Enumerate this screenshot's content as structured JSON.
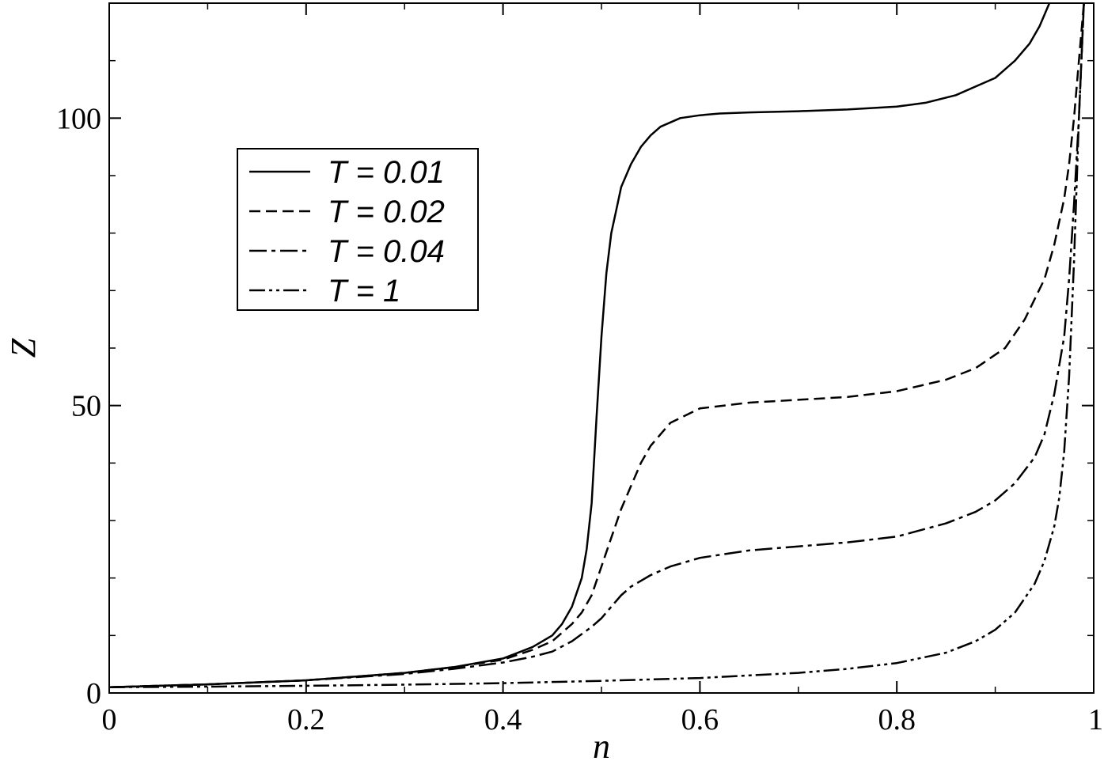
{
  "chart_data": {
    "type": "line",
    "title": "",
    "xlabel": "n",
    "ylabel": "Z",
    "xlim": [
      0,
      1
    ],
    "ylim": [
      0,
      120
    ],
    "x_ticks": [
      {
        "value": 0,
        "label": "0"
      },
      {
        "value": 0.2,
        "label": "0.2"
      },
      {
        "value": 0.4,
        "label": "0.4"
      },
      {
        "value": 0.6,
        "label": "0.6"
      },
      {
        "value": 0.8,
        "label": "0.8"
      },
      {
        "value": 1,
        "label": "1"
      }
    ],
    "y_ticks": [
      {
        "value": 0,
        "label": "0"
      },
      {
        "value": 50,
        "label": "50"
      },
      {
        "value": 100,
        "label": "100"
      }
    ],
    "x_minor_step": 0.1,
    "y_minor_step": 10,
    "grid": false,
    "legend_position": "upper-left",
    "series": [
      {
        "name": "T = 0.01",
        "dash": "solid",
        "color": "#000000",
        "x": [
          0,
          0.1,
          0.2,
          0.3,
          0.35,
          0.4,
          0.43,
          0.45,
          0.46,
          0.47,
          0.48,
          0.485,
          0.49,
          0.495,
          0.5,
          0.505,
          0.51,
          0.515,
          0.52,
          0.53,
          0.54,
          0.55,
          0.56,
          0.58,
          0.6,
          0.62,
          0.65,
          0.7,
          0.75,
          0.8,
          0.83,
          0.86,
          0.88,
          0.9,
          0.92,
          0.935,
          0.945,
          0.955
        ],
        "y": [
          1,
          1.5,
          2.2,
          3.5,
          4.5,
          6,
          8,
          10,
          12,
          15,
          20,
          25,
          33,
          48,
          62,
          73,
          80,
          84,
          88,
          92,
          95,
          97,
          98.5,
          100,
          100.5,
          100.8,
          101,
          101.2,
          101.5,
          102,
          102.7,
          104,
          105.5,
          107,
          110,
          113,
          116,
          120
        ]
      },
      {
        "name": "T = 0.02",
        "dash": "dashed",
        "color": "#000000",
        "x": [
          0,
          0.1,
          0.2,
          0.3,
          0.35,
          0.4,
          0.43,
          0.45,
          0.47,
          0.48,
          0.49,
          0.5,
          0.51,
          0.52,
          0.53,
          0.54,
          0.55,
          0.57,
          0.6,
          0.65,
          0.7,
          0.75,
          0.8,
          0.85,
          0.88,
          0.91,
          0.93,
          0.95,
          0.96,
          0.97,
          0.975,
          0.98,
          0.985,
          0.99
        ],
        "y": [
          1,
          1.5,
          2.2,
          3.5,
          4.5,
          5.8,
          7.5,
          9,
          12,
          14,
          17,
          22,
          27,
          32,
          36,
          40,
          43,
          47,
          49.5,
          50.5,
          51,
          51.5,
          52.5,
          54.5,
          56.5,
          60,
          65,
          72,
          78,
          86,
          92,
          100,
          110,
          120
        ]
      },
      {
        "name": "T = 0.04",
        "dash": "dashdot",
        "color": "#000000",
        "x": [
          0,
          0.1,
          0.2,
          0.3,
          0.35,
          0.4,
          0.43,
          0.45,
          0.47,
          0.49,
          0.5,
          0.51,
          0.52,
          0.53,
          0.55,
          0.57,
          0.6,
          0.65,
          0.7,
          0.75,
          0.8,
          0.85,
          0.88,
          0.9,
          0.92,
          0.94,
          0.95,
          0.96,
          0.97,
          0.975,
          0.98,
          0.985,
          0.99
        ],
        "y": [
          1,
          1.5,
          2.2,
          3.3,
          4.2,
          5.3,
          6.3,
          7.2,
          9,
          11.5,
          13,
          15,
          17,
          18.5,
          20.5,
          22,
          23.5,
          24.8,
          25.5,
          26.2,
          27.2,
          29.5,
          31.5,
          33.5,
          36.5,
          41,
          45,
          52,
          62,
          72,
          85,
          100,
          120
        ]
      },
      {
        "name": "T = 1",
        "dash": "dashdotdot",
        "color": "#000000",
        "x": [
          0,
          0.1,
          0.2,
          0.3,
          0.4,
          0.5,
          0.6,
          0.7,
          0.75,
          0.8,
          0.85,
          0.88,
          0.9,
          0.92,
          0.94,
          0.95,
          0.96,
          0.965,
          0.97,
          0.975,
          0.98,
          0.985,
          0.99
        ],
        "y": [
          1,
          1.1,
          1.25,
          1.45,
          1.7,
          2.1,
          2.6,
          3.5,
          4.2,
          5.2,
          7,
          9,
          11,
          14,
          19,
          23,
          29,
          34,
          42,
          55,
          75,
          100,
          120
        ]
      }
    ]
  }
}
